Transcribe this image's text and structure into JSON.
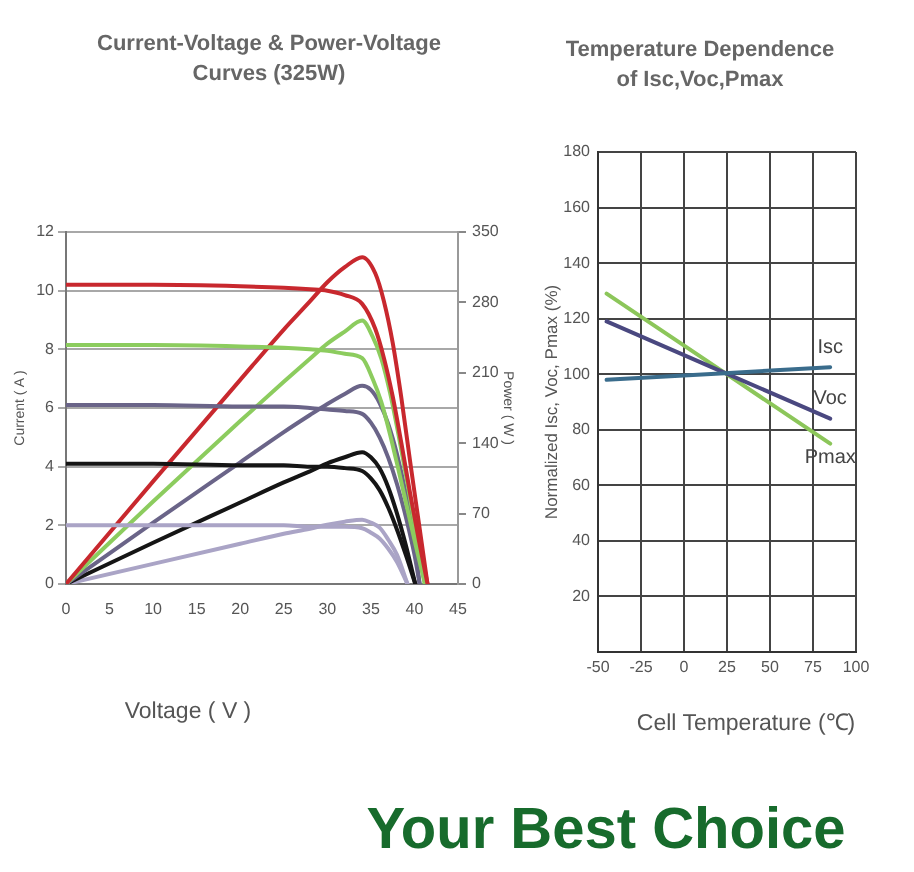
{
  "chart_data": [
    {
      "type": "line",
      "title": "Current-Voltage & Power-Voltage Curves (325W)",
      "xlabel": "Voltage ( V )",
      "ylabel": "Current ( A )",
      "y2label": "Power ( W )",
      "xlim": [
        0,
        45
      ],
      "xticks": [
        0,
        5,
        10,
        15,
        20,
        25,
        30,
        35,
        40,
        45
      ],
      "ylim": [
        0,
        12
      ],
      "yticks": [
        0,
        2,
        4,
        6,
        8,
        10,
        12
      ],
      "y2lim": [
        0,
        350
      ],
      "y2ticks": [
        0,
        70,
        140,
        210,
        280,
        350
      ],
      "grid": "y",
      "legend": false,
      "marker": "none",
      "line_style": "solid",
      "series": [
        {
          "color": "#c8282e",
          "axis": "y",
          "x": [
            0,
            10,
            20,
            25,
            28,
            30,
            32,
            34,
            35.5,
            36.5,
            37.5,
            38.5,
            39.5,
            40.5,
            41.5
          ],
          "values": [
            10.2,
            10.2,
            10.15,
            10.1,
            10.05,
            10,
            9.85,
            9.55,
            8.7,
            7.7,
            6.4,
            4.8,
            3.1,
            1.5,
            0
          ]
        },
        {
          "color": "#8ccc5e",
          "axis": "y",
          "x": [
            0,
            10,
            20,
            25,
            28,
            30,
            32,
            34,
            35.2,
            36.2,
            37.2,
            38.2,
            39.2,
            40.2,
            41.2
          ],
          "values": [
            8.15,
            8.15,
            8.1,
            8.05,
            8,
            7.95,
            7.85,
            7.7,
            7,
            6.2,
            5.1,
            3.85,
            2.55,
            1.25,
            0
          ]
        },
        {
          "color": "#6a6488",
          "axis": "y",
          "x": [
            0,
            10,
            20,
            25,
            28,
            30,
            32,
            34,
            35,
            36,
            37,
            38,
            39,
            40,
            40.6
          ],
          "values": [
            6.1,
            6.1,
            6.05,
            6.05,
            6,
            5.95,
            5.9,
            5.8,
            5.5,
            5,
            4.3,
            3.4,
            2.3,
            1,
            0
          ]
        },
        {
          "color": "#151515",
          "axis": "y",
          "x": [
            0,
            10,
            20,
            25,
            28,
            30,
            32,
            34,
            35,
            36,
            37,
            38,
            39,
            40.1
          ],
          "values": [
            4.1,
            4.1,
            4.05,
            4.05,
            4,
            4,
            3.95,
            3.85,
            3.6,
            3.2,
            2.6,
            1.85,
            1,
            0
          ]
        },
        {
          "color": "#aaa4c6",
          "axis": "y",
          "x": [
            0,
            10,
            20,
            25,
            28,
            30,
            32,
            34,
            35,
            36,
            37,
            38,
            39.2
          ],
          "values": [
            2,
            2,
            2,
            2,
            1.95,
            1.95,
            1.95,
            1.9,
            1.75,
            1.55,
            1.2,
            0.75,
            0
          ]
        },
        {
          "color": "#c8282e",
          "axis": "y2",
          "x": [
            0,
            10,
            20,
            25,
            28,
            30,
            32,
            34,
            35.5,
            36.5,
            37.5,
            38.5,
            39.5,
            40.5,
            41.5
          ],
          "values": [
            0,
            102,
            203,
            253,
            281,
            300,
            315,
            325,
            309,
            281,
            240,
            185,
            122,
            61,
            0
          ]
        },
        {
          "color": "#8ccc5e",
          "axis": "y2",
          "x": [
            0,
            10,
            20,
            25,
            28,
            30,
            32,
            34,
            35.2,
            36.2,
            37.2,
            38.2,
            39.2,
            40.2,
            41.2
          ],
          "values": [
            0,
            82,
            162,
            201,
            224,
            239,
            251,
            262,
            246,
            224,
            190,
            147,
            100,
            50,
            0
          ]
        },
        {
          "color": "#6a6488",
          "axis": "y2",
          "x": [
            0,
            10,
            20,
            25,
            28,
            30,
            32,
            34,
            35,
            36,
            37,
            38,
            39,
            40,
            40.6
          ],
          "values": [
            0,
            61,
            121,
            151,
            168,
            179,
            189,
            197,
            193,
            180,
            159,
            129,
            90,
            40,
            0
          ]
        },
        {
          "color": "#151515",
          "axis": "y2",
          "x": [
            0,
            10,
            20,
            25,
            28,
            30,
            32,
            34,
            35,
            36,
            37,
            38,
            39,
            40.1
          ],
          "values": [
            0,
            41,
            81,
            101,
            112,
            120,
            126,
            131,
            126,
            115,
            96,
            70,
            39,
            0
          ]
        },
        {
          "color": "#aaa4c6",
          "axis": "y2",
          "x": [
            0,
            10,
            20,
            25,
            28,
            30,
            32,
            34,
            35,
            36,
            37,
            38,
            39.2
          ],
          "values": [
            0,
            20,
            40,
            50,
            55,
            59,
            62,
            64,
            61,
            56,
            44,
            29,
            0
          ]
        }
      ]
    },
    {
      "type": "line",
      "title": "Temperature Dependence of Isc,Voc,Pmax",
      "xlabel": "Cell Temperature (℃)",
      "ylabel": "Normalized Isc, Voc, Pmax (%)",
      "xlim": [
        -50,
        100
      ],
      "xticks": [
        -50,
        -25,
        0,
        25,
        50,
        75,
        100
      ],
      "ylim": [
        0,
        180
      ],
      "yticks": [
        20,
        40,
        60,
        80,
        100,
        120,
        140,
        160,
        180
      ],
      "grid": true,
      "legend": false,
      "marker": "none",
      "line_style": "solid",
      "annotations": [
        "Your Best Choice"
      ],
      "series": [
        {
          "name": "Isc",
          "color": "#3a6c8c",
          "x": [
            -45,
            85
          ],
          "values": [
            98,
            102.5
          ]
        },
        {
          "name": "Voc",
          "color": "#4a4880",
          "x": [
            -45,
            85
          ],
          "values": [
            119,
            84
          ]
        },
        {
          "name": "Pmax",
          "color": "#8cc65a",
          "x": [
            -45,
            85
          ],
          "values": [
            129,
            75
          ]
        }
      ]
    }
  ]
}
